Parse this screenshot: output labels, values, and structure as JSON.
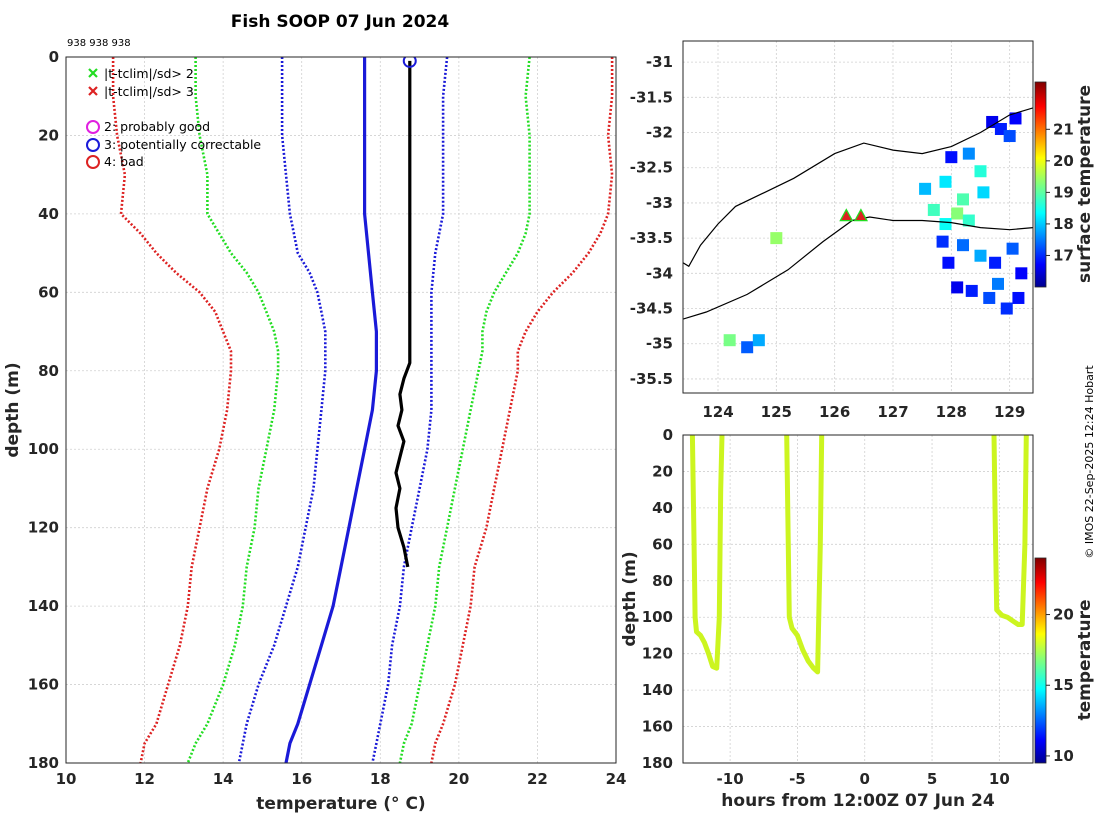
{
  "title": "Fish SOOP 07 Jun 2024",
  "id_label": "938 938 938",
  "copyright": "© IMOS 22-Sep-2025 12:24 Hobart",
  "colors": {
    "green": "#22dd22",
    "red": "#dd2222",
    "blue": "#1a1ad8",
    "profile": "#000000",
    "time_profile": "#ccf520"
  },
  "chart_data": [
    {
      "type": "line",
      "name": "profile",
      "xlabel": "temperature (° C)",
      "ylabel": "depth (m)",
      "xlim": [
        10,
        24
      ],
      "ylim": [
        0,
        180
      ],
      "xticks": [
        10,
        12,
        14,
        16,
        18,
        20,
        22,
        24
      ],
      "yticks": [
        0,
        20,
        40,
        60,
        80,
        100,
        120,
        140,
        160,
        180
      ],
      "grid": true,
      "legend": {
        "position": "top-left",
        "entries": [
          {
            "marker": "x",
            "color": "green",
            "label": "|t-tclim|/sd> 2"
          },
          {
            "marker": "x",
            "color": "red",
            "label": "|t-tclim|/sd> 3"
          },
          {
            "marker": "circle",
            "color": "magenta",
            "label": "2: probably good"
          },
          {
            "marker": "circle",
            "color": "blue",
            "label": "3: potentially correctable"
          },
          {
            "marker": "circle",
            "color": "red",
            "label": "4: bad"
          }
        ]
      },
      "series": [
        {
          "name": "clim_low_3sd",
          "style": "dotted",
          "color": "red",
          "depth": [
            0,
            10,
            20,
            30,
            40,
            45,
            50,
            55,
            60,
            65,
            70,
            75,
            80,
            90,
            100,
            110,
            120,
            130,
            140,
            150,
            160,
            170,
            175,
            180
          ],
          "temp": [
            11.2,
            11.2,
            11.3,
            11.5,
            11.4,
            11.9,
            12.3,
            12.8,
            13.4,
            13.8,
            14.0,
            14.2,
            14.2,
            14.1,
            13.9,
            13.6,
            13.4,
            13.2,
            13.1,
            12.9,
            12.6,
            12.3,
            12.0,
            11.9
          ]
        },
        {
          "name": "clim_low_2sd",
          "style": "dotted",
          "color": "green",
          "depth": [
            0,
            10,
            20,
            30,
            40,
            45,
            50,
            55,
            60,
            65,
            70,
            75,
            80,
            90,
            100,
            110,
            120,
            130,
            140,
            150,
            160,
            170,
            175,
            180
          ],
          "temp": [
            13.3,
            13.3,
            13.4,
            13.6,
            13.6,
            13.9,
            14.2,
            14.6,
            14.9,
            15.1,
            15.3,
            15.4,
            15.4,
            15.3,
            15.1,
            14.9,
            14.8,
            14.6,
            14.5,
            14.3,
            14.0,
            13.6,
            13.3,
            13.1
          ]
        },
        {
          "name": "clim_low_1sd",
          "style": "dotted",
          "color": "blue",
          "depth": [
            0,
            10,
            20,
            30,
            40,
            45,
            50,
            55,
            60,
            65,
            70,
            75,
            80,
            90,
            100,
            110,
            120,
            130,
            140,
            150,
            160,
            170,
            175,
            180
          ],
          "temp": [
            15.5,
            15.5,
            15.5,
            15.6,
            15.7,
            15.8,
            15.9,
            16.2,
            16.4,
            16.5,
            16.6,
            16.6,
            16.6,
            16.5,
            16.4,
            16.3,
            16.1,
            15.9,
            15.6,
            15.3,
            14.9,
            14.6,
            14.5,
            14.4
          ]
        },
        {
          "name": "clim_mean",
          "style": "solid",
          "color": "blue",
          "depth": [
            0,
            10,
            20,
            30,
            40,
            50,
            60,
            70,
            80,
            90,
            100,
            110,
            120,
            130,
            140,
            150,
            160,
            170,
            175,
            180
          ],
          "temp": [
            17.6,
            17.6,
            17.6,
            17.6,
            17.6,
            17.7,
            17.8,
            17.9,
            17.9,
            17.8,
            17.6,
            17.4,
            17.2,
            17.0,
            16.8,
            16.5,
            16.2,
            15.9,
            15.7,
            15.6
          ]
        },
        {
          "name": "clim_high_1sd",
          "style": "dotted",
          "color": "blue",
          "depth": [
            0,
            10,
            20,
            30,
            40,
            50,
            60,
            70,
            80,
            90,
            100,
            110,
            120,
            130,
            140,
            150,
            160,
            170,
            175,
            180
          ],
          "temp": [
            19.7,
            19.6,
            19.6,
            19.6,
            19.6,
            19.4,
            19.3,
            19.3,
            19.3,
            19.3,
            19.2,
            19.0,
            18.8,
            18.6,
            18.5,
            18.3,
            18.2,
            18.0,
            17.9,
            17.8
          ]
        },
        {
          "name": "clim_high_2sd",
          "style": "dotted",
          "color": "green",
          "depth": [
            0,
            10,
            20,
            30,
            40,
            45,
            50,
            55,
            60,
            65,
            70,
            75,
            80,
            90,
            100,
            110,
            120,
            130,
            140,
            150,
            160,
            170,
            175,
            180
          ],
          "temp": [
            21.8,
            21.7,
            21.8,
            21.8,
            21.8,
            21.7,
            21.5,
            21.2,
            20.9,
            20.7,
            20.6,
            20.6,
            20.5,
            20.3,
            20.1,
            19.9,
            19.7,
            19.5,
            19.4,
            19.2,
            19.0,
            18.8,
            18.6,
            18.5
          ]
        },
        {
          "name": "clim_high_3sd",
          "style": "dotted",
          "color": "red",
          "depth": [
            0,
            10,
            20,
            30,
            40,
            45,
            50,
            55,
            60,
            65,
            70,
            75,
            80,
            90,
            100,
            110,
            120,
            130,
            140,
            150,
            160,
            170,
            175,
            180
          ],
          "temp": [
            23.9,
            23.9,
            23.8,
            23.9,
            23.8,
            23.6,
            23.3,
            22.9,
            22.4,
            22.0,
            21.7,
            21.5,
            21.5,
            21.3,
            21.1,
            20.9,
            20.7,
            20.4,
            20.3,
            20.1,
            19.9,
            19.6,
            19.4,
            19.3
          ]
        },
        {
          "name": "fish_profile",
          "style": "solid",
          "color": "profile",
          "depth": [
            1,
            20,
            40,
            60,
            78,
            82,
            86,
            90,
            94,
            98,
            102,
            106,
            110,
            115,
            120,
            125,
            130
          ],
          "temp": [
            18.75,
            18.75,
            18.75,
            18.75,
            18.75,
            18.6,
            18.5,
            18.55,
            18.45,
            18.6,
            18.5,
            18.4,
            18.5,
            18.4,
            18.45,
            18.6,
            18.7
          ]
        }
      ],
      "markers": [
        {
          "kind": "qc_circle",
          "color": "blue",
          "temp": 18.75,
          "depth": 1
        }
      ]
    },
    {
      "type": "heatmap",
      "name": "map",
      "xlim": [
        123.4,
        129.4
      ],
      "ylim": [
        -35.7,
        -30.7
      ],
      "xticks": [
        124,
        125,
        126,
        127,
        128,
        129
      ],
      "yticks": [
        -31,
        -31.5,
        -32,
        -32.5,
        -33,
        -33.5,
        -34,
        -34.5,
        -35,
        -35.5
      ],
      "colorbar": {
        "label": "surface temperature",
        "range": [
          16,
          22.5
        ],
        "ticks": [
          17,
          18,
          19,
          20,
          21
        ]
      },
      "coastline": [
        [
          123.4,
          -33.85
        ],
        [
          123.5,
          -33.9
        ],
        [
          123.7,
          -33.6
        ],
        [
          124.0,
          -33.3
        ],
        [
          124.3,
          -33.05
        ],
        [
          124.8,
          -32.85
        ],
        [
          125.3,
          -32.65
        ],
        [
          126.0,
          -32.3
        ],
        [
          126.5,
          -32.15
        ],
        [
          127.0,
          -32.25
        ],
        [
          127.5,
          -32.3
        ],
        [
          128.0,
          -32.2
        ],
        [
          128.5,
          -32.0
        ],
        [
          129.0,
          -31.75
        ],
        [
          129.4,
          -31.65
        ]
      ],
      "shelf_edge": [
        [
          123.4,
          -34.65
        ],
        [
          123.8,
          -34.55
        ],
        [
          124.5,
          -34.3
        ],
        [
          125.2,
          -33.95
        ],
        [
          125.8,
          -33.55
        ],
        [
          126.3,
          -33.25
        ],
        [
          126.6,
          -33.2
        ],
        [
          127.0,
          -33.25
        ],
        [
          127.5,
          -33.25
        ],
        [
          128.0,
          -33.28
        ],
        [
          128.5,
          -33.35
        ],
        [
          129.0,
          -33.38
        ],
        [
          129.4,
          -33.35
        ]
      ],
      "cells": [
        {
          "lon": 128.7,
          "lat": -31.85,
          "t": 16.6
        },
        {
          "lon": 128.85,
          "lat": -31.95,
          "t": 16.9
        },
        {
          "lon": 129.0,
          "lat": -32.05,
          "t": 17.2
        },
        {
          "lon": 129.1,
          "lat": -31.8,
          "t": 16.7
        },
        {
          "lon": 128.0,
          "lat": -32.35,
          "t": 16.8
        },
        {
          "lon": 128.3,
          "lat": -32.3,
          "t": 17.6
        },
        {
          "lon": 128.5,
          "lat": -32.55,
          "t": 18.6
        },
        {
          "lon": 127.9,
          "lat": -32.7,
          "t": 18.2
        },
        {
          "lon": 127.55,
          "lat": -32.8,
          "t": 17.9
        },
        {
          "lon": 128.2,
          "lat": -32.95,
          "t": 18.9
        },
        {
          "lon": 128.55,
          "lat": -32.85,
          "t": 18.1
        },
        {
          "lon": 127.7,
          "lat": -33.1,
          "t": 18.8
        },
        {
          "lon": 128.1,
          "lat": -33.15,
          "t": 19.3
        },
        {
          "lon": 127.9,
          "lat": -33.3,
          "t": 18.4
        },
        {
          "lon": 128.3,
          "lat": -33.25,
          "t": 18.7
        },
        {
          "lon": 127.85,
          "lat": -33.55,
          "t": 17.0
        },
        {
          "lon": 128.2,
          "lat": -33.6,
          "t": 17.4
        },
        {
          "lon": 128.5,
          "lat": -33.75,
          "t": 17.8
        },
        {
          "lon": 127.95,
          "lat": -33.85,
          "t": 16.8
        },
        {
          "lon": 128.75,
          "lat": -33.85,
          "t": 16.9
        },
        {
          "lon": 129.05,
          "lat": -33.65,
          "t": 17.3
        },
        {
          "lon": 129.2,
          "lat": -34.0,
          "t": 16.7
        },
        {
          "lon": 128.8,
          "lat": -34.15,
          "t": 17.5
        },
        {
          "lon": 128.1,
          "lat": -34.2,
          "t": 16.6
        },
        {
          "lon": 128.35,
          "lat": -34.25,
          "t": 16.9
        },
        {
          "lon": 128.65,
          "lat": -34.35,
          "t": 17.2
        },
        {
          "lon": 129.15,
          "lat": -34.35,
          "t": 16.8
        },
        {
          "lon": 128.95,
          "lat": -34.5,
          "t": 17.0
        },
        {
          "lon": 125.0,
          "lat": -33.5,
          "t": 19.4
        },
        {
          "lon": 124.5,
          "lat": -35.05,
          "t": 17.3
        },
        {
          "lon": 124.7,
          "lat": -34.95,
          "t": 17.8
        },
        {
          "lon": 124.2,
          "lat": -34.95,
          "t": 19.2
        }
      ],
      "markers": [
        {
          "lon": 126.2,
          "lat": -33.18
        },
        {
          "lon": 126.45,
          "lat": -33.18
        }
      ]
    },
    {
      "type": "line",
      "name": "depth_vs_time",
      "xlabel": "hours from 12:00Z 07 Jun 24",
      "ylabel": "depth (m)",
      "xlim": [
        -13.5,
        12.5
      ],
      "ylim": [
        0,
        180
      ],
      "xticks": [
        -10,
        -5,
        0,
        5,
        10
      ],
      "yticks": [
        0,
        20,
        40,
        60,
        80,
        100,
        120,
        140,
        160,
        180
      ],
      "colorbar": {
        "label": "temperature",
        "range": [
          9.5,
          24
        ],
        "ticks": [
          10,
          15,
          20
        ]
      },
      "series": [
        {
          "name": "cast1",
          "hours": [
            -12.8,
            -12.7,
            -12.6,
            -12.5,
            -12.2,
            -11.9,
            -11.6,
            -11.3,
            -11.0,
            -10.8,
            -10.7,
            -10.6
          ],
          "depth": [
            0,
            50,
            100,
            108,
            110,
            114,
            120,
            127,
            128,
            100,
            30,
            0
          ],
          "temp": [
            18.8,
            18.8,
            18.6,
            18.5,
            18.5,
            18.4,
            18.5,
            18.5,
            18.6,
            18.6,
            18.7,
            18.8
          ]
        },
        {
          "name": "cast2",
          "hours": [
            -5.8,
            -5.7,
            -5.6,
            -5.4,
            -5.0,
            -4.6,
            -4.2,
            -3.8,
            -3.5,
            -3.3,
            -3.2
          ],
          "depth": [
            0,
            50,
            100,
            106,
            110,
            118,
            124,
            128,
            130,
            60,
            0
          ],
          "temp": [
            18.8,
            18.8,
            18.6,
            18.5,
            18.5,
            18.4,
            18.5,
            18.5,
            18.6,
            18.7,
            18.8
          ]
        },
        {
          "name": "cast3",
          "hours": [
            9.6,
            9.7,
            9.8,
            10.2,
            10.6,
            11.0,
            11.4,
            11.7,
            11.9,
            12.0
          ],
          "depth": [
            0,
            50,
            96,
            99,
            100,
            102,
            104,
            104,
            60,
            0
          ],
          "temp": [
            18.8,
            18.8,
            18.6,
            18.5,
            18.5,
            18.4,
            18.5,
            18.5,
            18.7,
            18.8
          ]
        }
      ]
    }
  ]
}
